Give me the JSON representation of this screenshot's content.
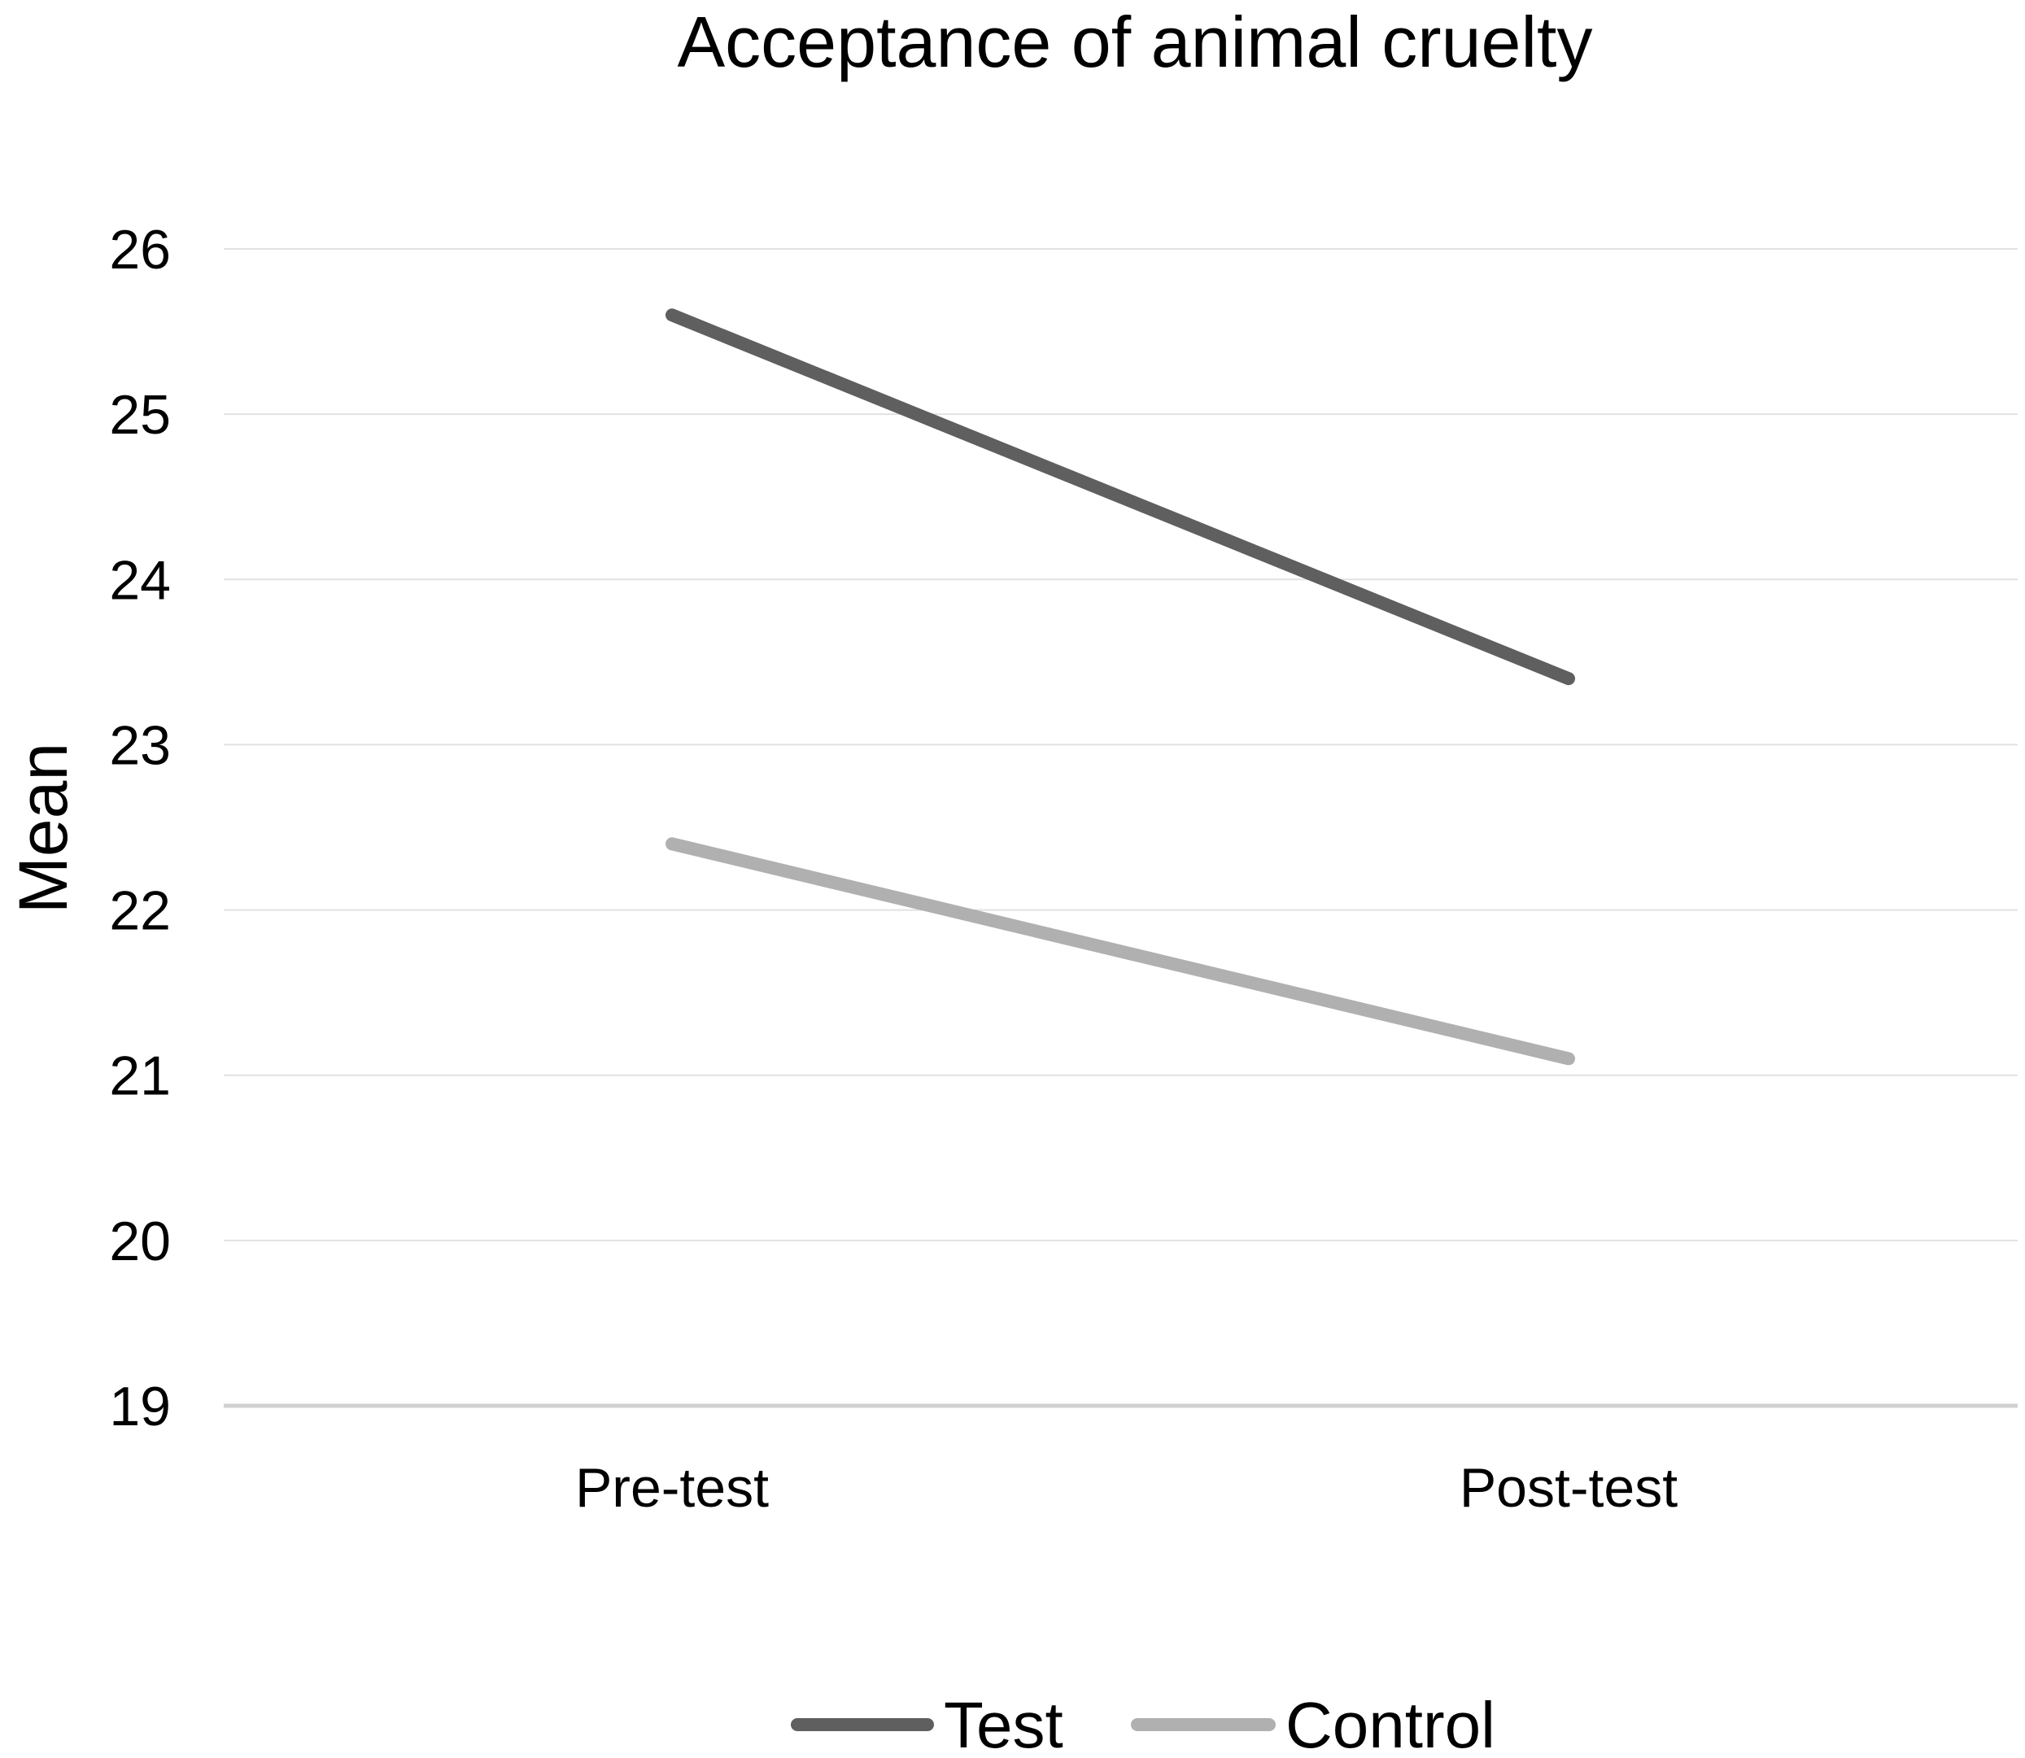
{
  "chart_data": {
    "type": "line",
    "title": "Acceptance of animal cruelty",
    "xlabel": "",
    "ylabel": "Mean",
    "categories": [
      "Pre-test",
      "Post-test"
    ],
    "ylim": [
      19,
      26
    ],
    "yticks": [
      19,
      20,
      21,
      22,
      23,
      24,
      25,
      26
    ],
    "grid": true,
    "legend_position": "bottom",
    "series": [
      {
        "name": "Test",
        "values": [
          25.6,
          23.4
        ],
        "color": "#5f5f5f"
      },
      {
        "name": "Control",
        "values": [
          22.4,
          21.1
        ],
        "color": "#b0b0b0"
      }
    ]
  }
}
